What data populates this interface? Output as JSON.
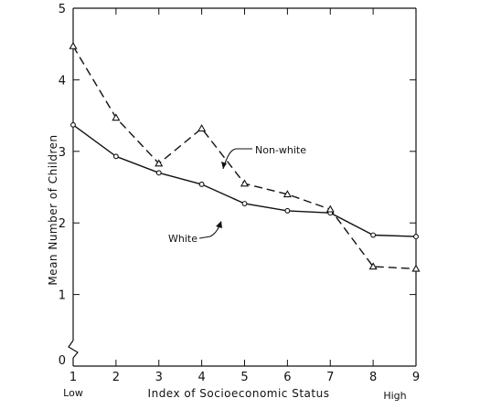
{
  "chart_data": {
    "type": "line",
    "xlabel": "Index of Socioeconomic Status",
    "ylabel": "Mean Number of Children",
    "x": [
      1,
      2,
      3,
      4,
      5,
      6,
      7,
      8,
      9
    ],
    "xlim": [
      1,
      9
    ],
    "ylim": [
      0,
      5
    ],
    "x_ticks": [
      "1",
      "2",
      "3",
      "4",
      "5",
      "6",
      "7",
      "8",
      "9"
    ],
    "y_ticks": [
      "0",
      "1",
      "2",
      "3",
      "4",
      "5"
    ],
    "x_end_labels": {
      "low": "Low",
      "high": "High"
    },
    "y_axis_break": true,
    "grid": false,
    "series": [
      {
        "name": "White",
        "style": "solid",
        "marker": "circle",
        "values": [
          3.37,
          2.93,
          2.7,
          2.54,
          2.27,
          2.17,
          2.14,
          1.83,
          1.81
        ]
      },
      {
        "name": "Non-white",
        "style": "dashed",
        "marker": "triangle",
        "values": [
          4.47,
          3.47,
          2.83,
          3.32,
          2.55,
          2.4,
          2.19,
          1.39,
          1.36
        ]
      }
    ]
  }
}
